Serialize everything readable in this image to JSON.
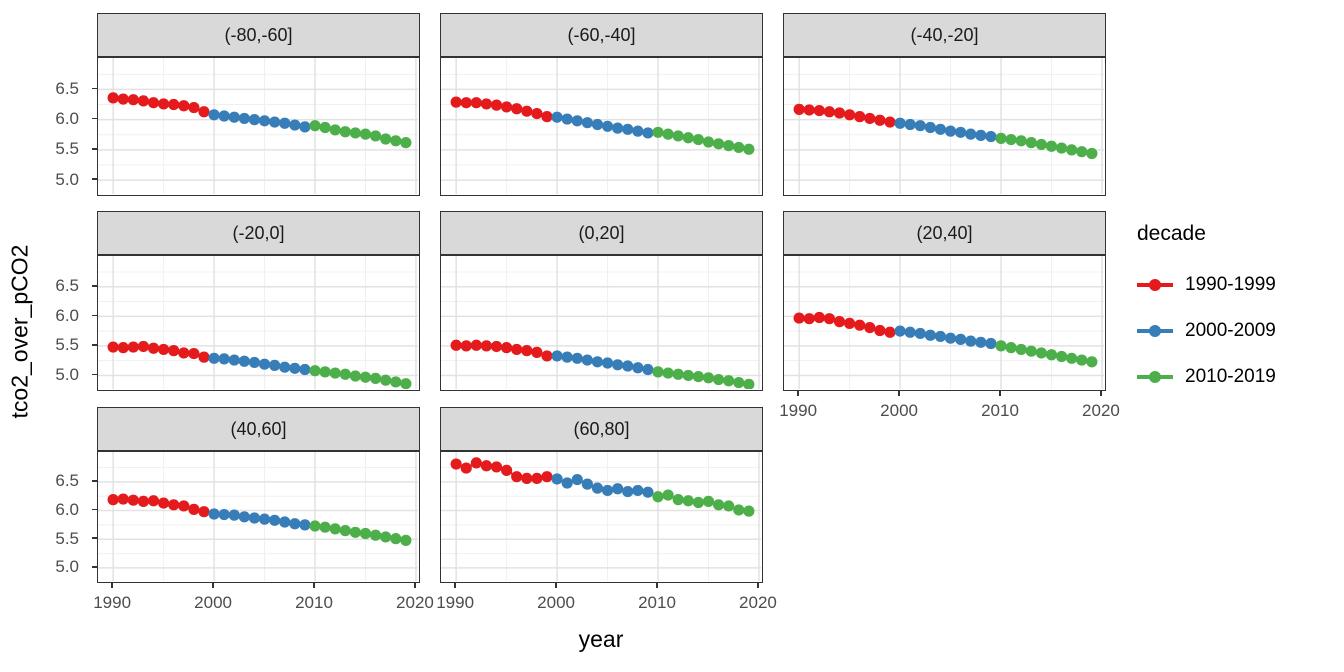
{
  "figure": {
    "x_axis_title": "year",
    "y_axis_title": "tco2_over_pCO2"
  },
  "legend": {
    "title": "decade",
    "entries": [
      {
        "label": "1990-1999",
        "color": "#E41A1C"
      },
      {
        "label": "2000-2009",
        "color": "#377EB8"
      },
      {
        "label": "2010-2019",
        "color": "#4DAF4A"
      }
    ]
  },
  "chart_data": {
    "type": "line",
    "title": "",
    "xlabel": "year",
    "ylabel": "tco2_over_pCO2",
    "legend_title": "decade",
    "legend_position": "right",
    "grid": true,
    "facet_layout": "3 columns, 8 facets (bottom-right cell empty)",
    "xlim": [
      1988.5,
      2020.5
    ],
    "ylim": [
      4.72,
      7.02
    ],
    "x_ticks": [
      {
        "v": 1990,
        "label": "1990"
      },
      {
        "v": 2000,
        "label": "2000"
      },
      {
        "v": 2010,
        "label": "2010"
      },
      {
        "v": 2020,
        "label": "2020"
      }
    ],
    "y_ticks": [
      {
        "v": 6.5,
        "label": "6.5"
      },
      {
        "v": 6.0,
        "label": "6.0"
      },
      {
        "v": 5.5,
        "label": "5.5"
      },
      {
        "v": 5.0,
        "label": "5.0"
      }
    ],
    "x_minor_ticks": [
      1995,
      2005,
      2015
    ],
    "y_minor_ticks": [
      4.75,
      5.25,
      5.75,
      6.25,
      6.75
    ],
    "years": [
      1990,
      1991,
      1992,
      1993,
      1994,
      1995,
      1996,
      1997,
      1998,
      1999,
      2000,
      2001,
      2002,
      2003,
      2004,
      2005,
      2006,
      2007,
      2008,
      2009,
      2010,
      2011,
      2012,
      2013,
      2014,
      2015,
      2016,
      2017,
      2018,
      2019
    ],
    "series_groups": [
      {
        "name": "1990-1999",
        "color": "#E41A1C",
        "start_year": 1990,
        "end_year": 1999
      },
      {
        "name": "2000-2009",
        "color": "#377EB8",
        "start_year": 2000,
        "end_year": 2009
      },
      {
        "name": "2010-2019",
        "color": "#4DAF4A",
        "start_year": 2010,
        "end_year": 2019
      }
    ],
    "facets": [
      {
        "label": "(-80,-60]",
        "values": [
          6.36,
          6.34,
          6.33,
          6.31,
          6.28,
          6.26,
          6.25,
          6.23,
          6.2,
          6.13,
          6.08,
          6.06,
          6.04,
          6.02,
          6.0,
          5.98,
          5.96,
          5.94,
          5.91,
          5.88,
          5.9,
          5.87,
          5.83,
          5.8,
          5.78,
          5.76,
          5.73,
          5.68,
          5.65,
          5.62
        ]
      },
      {
        "label": "(-60,-40]",
        "values": [
          6.29,
          6.28,
          6.28,
          6.26,
          6.24,
          6.21,
          6.18,
          6.14,
          6.1,
          6.05,
          6.04,
          6.01,
          5.98,
          5.95,
          5.92,
          5.89,
          5.86,
          5.84,
          5.81,
          5.78,
          5.79,
          5.76,
          5.73,
          5.7,
          5.67,
          5.63,
          5.6,
          5.57,
          5.54,
          5.51
        ]
      },
      {
        "label": "(-40,-20]",
        "values": [
          6.17,
          6.16,
          6.15,
          6.13,
          6.11,
          6.08,
          6.05,
          6.02,
          5.99,
          5.96,
          5.94,
          5.92,
          5.9,
          5.87,
          5.84,
          5.81,
          5.79,
          5.76,
          5.74,
          5.72,
          5.69,
          5.67,
          5.65,
          5.62,
          5.59,
          5.56,
          5.53,
          5.5,
          5.47,
          5.44
        ]
      },
      {
        "label": "(-20,0]",
        "values": [
          5.48,
          5.47,
          5.48,
          5.49,
          5.46,
          5.44,
          5.42,
          5.38,
          5.37,
          5.31,
          5.29,
          5.28,
          5.26,
          5.24,
          5.22,
          5.19,
          5.17,
          5.14,
          5.12,
          5.1,
          5.08,
          5.06,
          5.04,
          5.02,
          4.99,
          4.97,
          4.95,
          4.92,
          4.89,
          4.86
        ]
      },
      {
        "label": "(0,20]",
        "values": [
          5.51,
          5.5,
          5.51,
          5.5,
          5.49,
          5.47,
          5.44,
          5.42,
          5.39,
          5.33,
          5.33,
          5.31,
          5.29,
          5.26,
          5.23,
          5.21,
          5.18,
          5.16,
          5.13,
          5.1,
          5.06,
          5.04,
          5.02,
          5.0,
          4.98,
          4.96,
          4.93,
          4.91,
          4.88,
          4.85
        ]
      },
      {
        "label": "(20,40]",
        "values": [
          5.97,
          5.96,
          5.98,
          5.96,
          5.91,
          5.88,
          5.85,
          5.81,
          5.76,
          5.73,
          5.75,
          5.73,
          5.71,
          5.68,
          5.66,
          5.63,
          5.61,
          5.58,
          5.56,
          5.54,
          5.5,
          5.47,
          5.44,
          5.41,
          5.38,
          5.35,
          5.32,
          5.29,
          5.26,
          5.23
        ]
      },
      {
        "label": "(40,60]",
        "values": [
          6.19,
          6.2,
          6.18,
          6.16,
          6.17,
          6.13,
          6.1,
          6.08,
          6.02,
          5.98,
          5.94,
          5.93,
          5.92,
          5.89,
          5.87,
          5.85,
          5.83,
          5.8,
          5.77,
          5.75,
          5.73,
          5.71,
          5.68,
          5.65,
          5.62,
          5.6,
          5.57,
          5.54,
          5.51,
          5.48
        ]
      },
      {
        "label": "(60,80]",
        "values": [
          6.81,
          6.74,
          6.83,
          6.78,
          6.76,
          6.7,
          6.59,
          6.56,
          6.56,
          6.59,
          6.55,
          6.48,
          6.54,
          6.46,
          6.39,
          6.35,
          6.38,
          6.33,
          6.35,
          6.32,
          6.24,
          6.27,
          6.19,
          6.17,
          6.14,
          6.16,
          6.1,
          6.08,
          6.01,
          5.99
        ]
      }
    ]
  }
}
